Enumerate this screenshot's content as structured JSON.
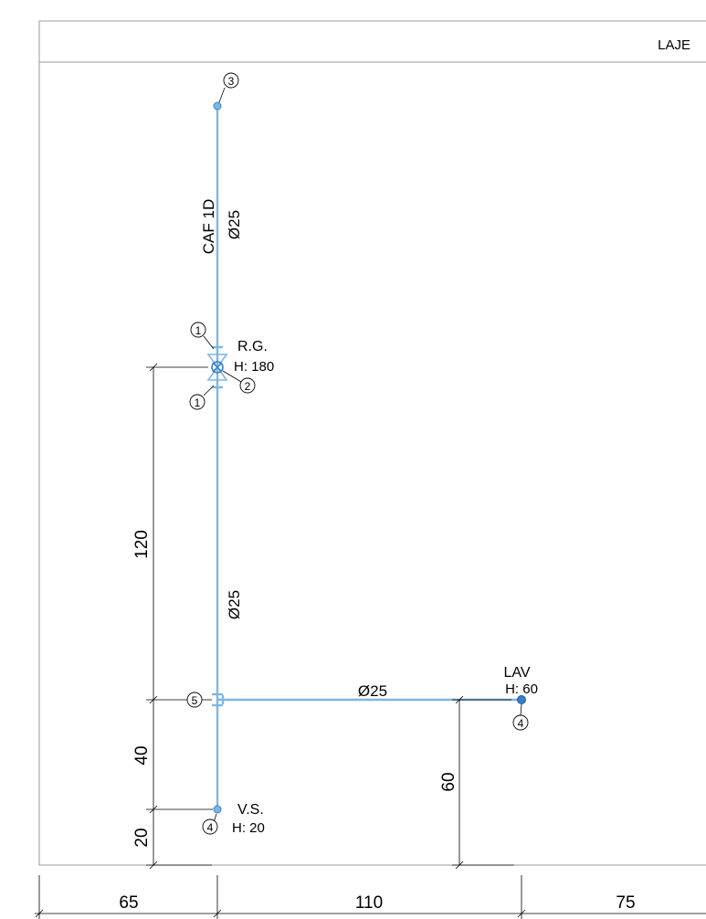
{
  "header": {
    "level_label": "LAJE"
  },
  "pipe": {
    "riser_code": "CAF 1D",
    "riser_diameter": "Ø25",
    "lower_diameter": "Ø25",
    "branch_diameter": "Ø25"
  },
  "fixtures": {
    "valve": {
      "name": "R.G.",
      "height": "H: 180"
    },
    "lavatory": {
      "name": "LAV",
      "height": "H: 60"
    },
    "vs": {
      "name": "V.S.",
      "height": "H: 20"
    }
  },
  "markers": {
    "top": "3",
    "valve_upper": "1",
    "valve_right": "2",
    "valve_lower": "1",
    "tee": "5",
    "lavatory": "4",
    "vs": "4"
  },
  "dimensions": {
    "vertical_120": "120",
    "vertical_40": "40",
    "vertical_20": "20",
    "vertical_60": "60",
    "horizontal_65": "65",
    "horizontal_110": "110",
    "horizontal_75": "75"
  },
  "colors": {
    "pipe": "#7fb6e2",
    "fixture_dot": "#3a7fc4"
  }
}
